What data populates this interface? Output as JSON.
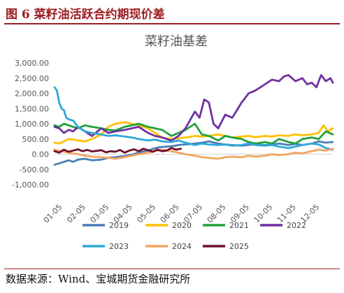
{
  "figure": {
    "label": "图 6 菜籽油活跃合约期现价差",
    "source": "数据来源：Wind、宝城期货金融研究所"
  },
  "colors": {
    "header": "#9c1d21",
    "y2019": "#4a7fb5",
    "y2020": "#ffc000",
    "y2021": "#1fa23c",
    "y2022": "#7030a0",
    "y2023": "#2ea8d8",
    "y2024": "#f4a460",
    "y2025": "#6e0f2a"
  },
  "chart_data": {
    "type": "line",
    "title": "菜籽油基差",
    "ylim": [
      -1000,
      3000
    ],
    "yticks": [
      -1000,
      -500,
      0,
      500,
      1000,
      1500,
      2000,
      2500,
      3000
    ],
    "ytick_labels": [
      "-1,000.00",
      "-500.00",
      "0.00",
      "500.00",
      "1,000.00",
      "1,500.00",
      "2,000.00",
      "2,500.00",
      "3,000.00"
    ],
    "x_labels": [
      "01-05",
      "02-05",
      "03-05",
      "04-05",
      "05-05",
      "06-05",
      "07-05",
      "08-05",
      "09-05",
      "10-05",
      "11-05",
      "12-05"
    ],
    "x_domain": [
      1,
      12.9
    ],
    "grid": false,
    "legend_position": "bottom",
    "series": [
      {
        "name": "2019",
        "color_key": "y2019",
        "x": [
          1.0,
          1.2,
          1.4,
          1.6,
          1.8,
          2.0,
          2.3,
          2.6,
          3.0,
          3.3,
          3.6,
          4.0,
          4.3,
          4.6,
          5.0,
          5.3,
          5.6,
          6.0,
          6.3,
          6.6,
          7.0,
          7.3,
          7.6,
          8.0,
          8.3,
          8.6,
          9.0,
          9.3,
          9.6,
          10.0,
          10.3,
          10.6,
          11.0,
          11.3,
          11.6,
          12.0,
          12.3,
          12.6,
          12.9
        ],
        "y": [
          -350,
          -300,
          -250,
          -200,
          -250,
          -180,
          -150,
          -200,
          -180,
          -120,
          -100,
          -60,
          -20,
          60,
          120,
          200,
          240,
          260,
          300,
          320,
          350,
          380,
          420,
          350,
          320,
          300,
          280,
          300,
          330,
          300,
          320,
          350,
          300,
          340,
          300,
          350,
          420,
          380,
          400
        ]
      },
      {
        "name": "2020",
        "color_key": "y2020",
        "x": [
          1.0,
          1.2,
          1.4,
          1.6,
          1.8,
          2.0,
          2.3,
          2.6,
          3.0,
          3.3,
          3.6,
          4.0,
          4.3,
          4.6,
          5.0,
          5.3,
          5.6,
          6.0,
          6.3,
          6.6,
          7.0,
          7.3,
          7.6,
          8.0,
          8.3,
          8.6,
          9.0,
          9.3,
          9.6,
          10.0,
          10.3,
          10.6,
          11.0,
          11.3,
          11.6,
          12.0,
          12.3,
          12.5,
          12.7,
          12.9
        ],
        "y": [
          380,
          350,
          420,
          500,
          480,
          450,
          420,
          500,
          650,
          900,
          1000,
          1050,
          1000,
          950,
          850,
          700,
          550,
          500,
          520,
          550,
          600,
          580,
          600,
          650,
          600,
          550,
          580,
          600,
          560,
          600,
          580,
          620,
          600,
          650,
          620,
          650,
          700,
          950,
          750,
          850
        ]
      },
      {
        "name": "2021",
        "color_key": "y2021",
        "x": [
          1.0,
          1.2,
          1.4,
          1.6,
          1.8,
          2.0,
          2.3,
          2.6,
          3.0,
          3.3,
          3.6,
          4.0,
          4.3,
          4.6,
          5.0,
          5.3,
          5.6,
          6.0,
          6.3,
          6.6,
          7.0,
          7.3,
          7.6,
          8.0,
          8.3,
          8.6,
          9.0,
          9.3,
          9.6,
          10.0,
          10.3,
          10.6,
          11.0,
          11.3,
          11.6,
          12.0,
          12.3,
          12.6,
          12.9
        ],
        "y": [
          950,
          900,
          1000,
          950,
          900,
          850,
          950,
          900,
          850,
          800,
          780,
          900,
          950,
          1000,
          900,
          850,
          800,
          600,
          700,
          800,
          1000,
          650,
          600,
          450,
          600,
          550,
          500,
          400,
          350,
          400,
          350,
          500,
          400,
          350,
          500,
          550,
          500,
          750,
          650
        ]
      },
      {
        "name": "2022",
        "color_key": "y2022",
        "x": [
          1.0,
          1.2,
          1.4,
          1.6,
          1.8,
          2.0,
          2.3,
          2.6,
          3.0,
          3.3,
          3.6,
          4.0,
          4.3,
          4.6,
          5.0,
          5.3,
          5.6,
          6.0,
          6.3,
          6.6,
          7.0,
          7.2,
          7.4,
          7.6,
          7.8,
          8.0,
          8.3,
          8.6,
          9.0,
          9.3,
          9.6,
          10.0,
          10.3,
          10.6,
          10.8,
          11.0,
          11.3,
          11.6,
          11.8,
          12.0,
          12.2,
          12.4,
          12.6,
          12.8,
          12.9
        ],
        "y": [
          900,
          850,
          700,
          800,
          750,
          900,
          750,
          600,
          850,
          700,
          750,
          800,
          850,
          900,
          700,
          600,
          550,
          450,
          600,
          850,
          1400,
          1200,
          1800,
          1700,
          1000,
          850,
          1300,
          1200,
          1700,
          2000,
          2100,
          2300,
          2450,
          2400,
          2550,
          2600,
          2400,
          2500,
          2300,
          2350,
          2200,
          2600,
          2400,
          2500,
          2350
        ]
      },
      {
        "name": "2023",
        "color_key": "y2023",
        "x": [
          1.0,
          1.1,
          1.2,
          1.3,
          1.4,
          1.5,
          1.6,
          1.8,
          2.0,
          2.3,
          2.6,
          3.0,
          3.3,
          3.6,
          4.0,
          4.3,
          4.6,
          5.0,
          5.3,
          5.6,
          6.0,
          6.3,
          6.6,
          7.0,
          7.3,
          7.6,
          8.0,
          8.3,
          8.6,
          9.0,
          9.3,
          9.6,
          10.0,
          10.3,
          10.6,
          11.0,
          11.3,
          11.6,
          12.0,
          12.3,
          12.6,
          12.9
        ],
        "y": [
          2200,
          2100,
          1700,
          1500,
          1450,
          1200,
          1150,
          1100,
          900,
          750,
          700,
          650,
          600,
          620,
          580,
          550,
          500,
          450,
          480,
          420,
          400,
          450,
          380,
          300,
          350,
          320,
          300,
          320,
          280,
          300,
          350,
          300,
          280,
          300,
          250,
          200,
          250,
          300,
          350,
          320,
          200,
          150
        ]
      },
      {
        "name": "2024",
        "color_key": "y2024",
        "x": [
          1.0,
          1.3,
          1.6,
          2.0,
          2.3,
          2.6,
          3.0,
          3.3,
          3.6,
          4.0,
          4.3,
          4.6,
          5.0,
          5.3,
          5.6,
          6.0,
          6.3,
          6.6,
          7.0,
          7.3,
          7.6,
          8.0,
          8.3,
          8.6,
          9.0,
          9.3,
          9.6,
          10.0,
          10.3,
          10.6,
          11.0,
          11.3,
          11.6,
          12.0,
          12.3,
          12.6,
          12.9
        ],
        "y": [
          150,
          100,
          50,
          0,
          -50,
          -80,
          -100,
          -120,
          -150,
          -100,
          -50,
          0,
          50,
          100,
          150,
          100,
          50,
          0,
          -50,
          -100,
          -120,
          -150,
          -100,
          -80,
          -100,
          -50,
          -80,
          -50,
          0,
          -30,
          0,
          50,
          30,
          100,
          150,
          120,
          180
        ]
      },
      {
        "name": "2025",
        "color_key": "y2025",
        "x": [
          1.0,
          1.2,
          1.4,
          1.6,
          1.8,
          2.0,
          2.2,
          2.4,
          2.6,
          2.8,
          3.0,
          3.2,
          3.4,
          3.6,
          3.8,
          4.0,
          4.2,
          4.4,
          4.6,
          4.8,
          5.0,
          5.2,
          5.4,
          5.6,
          5.8,
          6.0,
          6.2,
          6.4
        ],
        "y": [
          100,
          50,
          150,
          80,
          120,
          160,
          100,
          140,
          90,
          110,
          130,
          60,
          100,
          80,
          140,
          50,
          120,
          160,
          100,
          180,
          130,
          80,
          150,
          100,
          120,
          200,
          150,
          180
        ]
      }
    ]
  }
}
